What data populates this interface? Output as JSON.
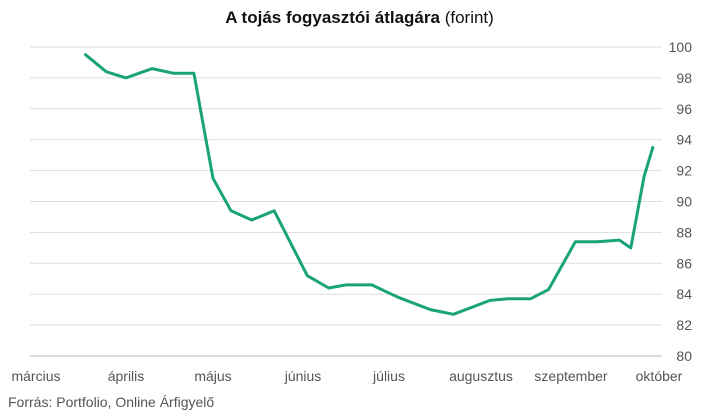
{
  "chart_data": {
    "type": "line",
    "title_bold": "A tojás fogyasztói átlagára",
    "title_light": "(forint)",
    "source": "Forrás: Portfolio, Online Árfigyelő",
    "x_tick_labels": [
      "március",
      "április",
      "május",
      "június",
      "július",
      "augusztus",
      "szeptember",
      "október"
    ],
    "ylim": [
      80,
      100
    ],
    "y_ticks": [
      80,
      82,
      84,
      86,
      88,
      90,
      92,
      94,
      96,
      98,
      100
    ],
    "grid": true,
    "line_color": "#1aa37a",
    "series": [
      {
        "x": [
          0.55,
          0.78,
          1.0,
          1.3,
          1.55,
          1.78,
          2.0,
          2.2,
          2.43,
          2.68,
          3.05,
          3.3,
          3.5,
          3.8,
          4.1,
          4.45,
          4.7,
          5.1,
          5.3,
          5.55,
          5.75,
          6.05,
          6.3,
          6.55,
          6.68,
          6.83,
          6.93
        ],
        "values": [
          99.5,
          98.4,
          98.0,
          98.6,
          98.3,
          98.3,
          91.5,
          89.4,
          88.8,
          89.4,
          85.2,
          84.4,
          84.6,
          84.6,
          83.8,
          83.0,
          82.7,
          83.6,
          83.7,
          83.7,
          84.3,
          87.4,
          87.4,
          87.5,
          87.0,
          91.6,
          93.5
        ]
      }
    ]
  }
}
